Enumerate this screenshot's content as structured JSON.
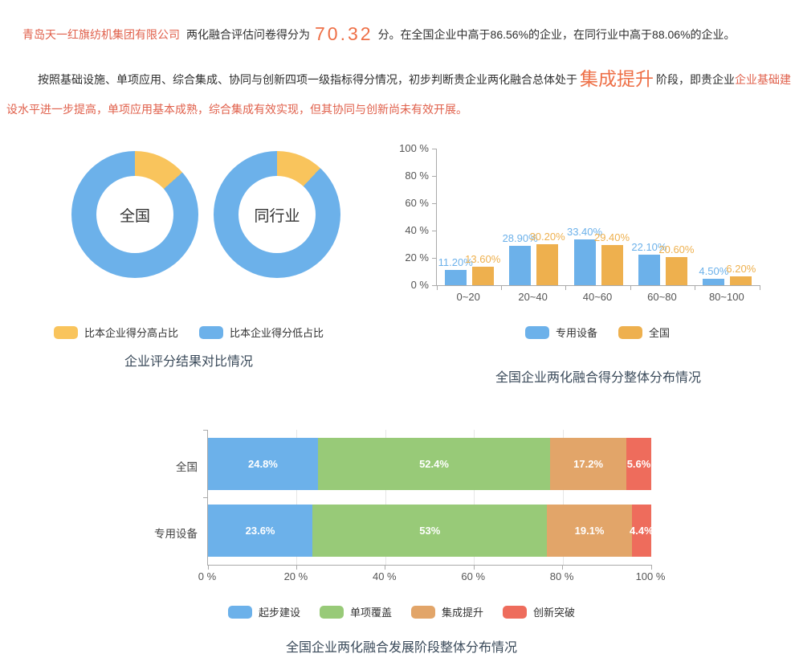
{
  "colors": {
    "accent_red": "#e0604b",
    "accent_orange": "#ee6f46",
    "title_text": "#3a4a5a",
    "axis_text": "#555555",
    "axis_line": "#aaaaaa",
    "grid_line": "#e6e6e6"
  },
  "intro": {
    "company": "青岛天一红旗纺机集团有限公司",
    "score_prefix": "两化融合评估问卷得分为",
    "score": "70.32",
    "score_suffix": "分。在全国企业中高于86.56%的企业，在同行业中高于88.06%的企业。",
    "stage_prefix": "按照基础设施、单项应用、综合集成、协同与创新四项一级指标得分情况，初步判断贵企业两化融合总体处于",
    "stage": "集成提升",
    "stage_mid": "阶段，即贵企业",
    "stage_detail": "企业基础建设水平进一步提高，单项应用基本成熟，综合集成有效实现，但其协同与创新尚未有效开展。"
  },
  "chart_data": [
    {
      "type": "pie",
      "subtype": "donut-pair",
      "title": "企业评分结果对比情况",
      "colors": {
        "high": "#f9c45c",
        "low": "#6cb1ea"
      },
      "legend": [
        {
          "label": "比本企业得分高占比",
          "key": "high"
        },
        {
          "label": "比本企业得分低占比",
          "key": "low"
        }
      ],
      "donuts": [
        {
          "label": "全国",
          "high_pct": 13.44,
          "low_pct": 86.56
        },
        {
          "label": "同行业",
          "high_pct": 11.94,
          "low_pct": 88.06
        }
      ]
    },
    {
      "type": "bar",
      "title": "全国企业两化融合得分整体分布情况",
      "categories": [
        "0~20",
        "20~40",
        "40~60",
        "60~80",
        "80~100"
      ],
      "series": [
        {
          "name": "专用设备",
          "color": "#6cb1ea",
          "values": [
            11.2,
            28.9,
            33.4,
            22.1,
            4.5
          ],
          "labels": [
            "11.20%",
            "28.90%",
            "33.40%",
            "22.10%",
            "4.50%"
          ]
        },
        {
          "name": "全国",
          "color": "#eeb04e",
          "values": [
            13.6,
            30.2,
            29.4,
            20.6,
            6.2
          ],
          "labels": [
            "13.60%",
            "30.20%",
            "29.40%",
            "20.60%",
            "6.20%"
          ]
        }
      ],
      "y_ticks": [
        "100 %",
        "80 %",
        "60 %",
        "40 %",
        "20 %",
        "0 %"
      ],
      "ylim": [
        0,
        100
      ],
      "grid": false,
      "legend_position": "bottom"
    },
    {
      "type": "bar",
      "subtype": "horizontal-stacked",
      "title": "全国企业两化融合发展阶段整体分布情况",
      "segments": [
        {
          "name": "起步建设",
          "color": "#6cb1ea"
        },
        {
          "name": "单项覆盖",
          "color": "#98ca78"
        },
        {
          "name": "集成提升",
          "color": "#e2a569"
        },
        {
          "name": "创新突破",
          "color": "#ee6c5c"
        }
      ],
      "rows": [
        {
          "label": "全国",
          "values": [
            24.8,
            52.4,
            17.2,
            5.6
          ],
          "labels": [
            "24.8%",
            "52.4%",
            "17.2%",
            "5.6%"
          ]
        },
        {
          "label": "专用设备",
          "values": [
            23.6,
            53,
            19.1,
            4.4
          ],
          "labels": [
            "23.6%",
            "53%",
            "19.1%",
            "4.4%"
          ]
        }
      ],
      "x_ticks": [
        "0 %",
        "20 %",
        "40 %",
        "60 %",
        "80 %",
        "100 %"
      ],
      "xlim": [
        0,
        100
      ],
      "grid": true,
      "legend_position": "bottom"
    }
  ]
}
